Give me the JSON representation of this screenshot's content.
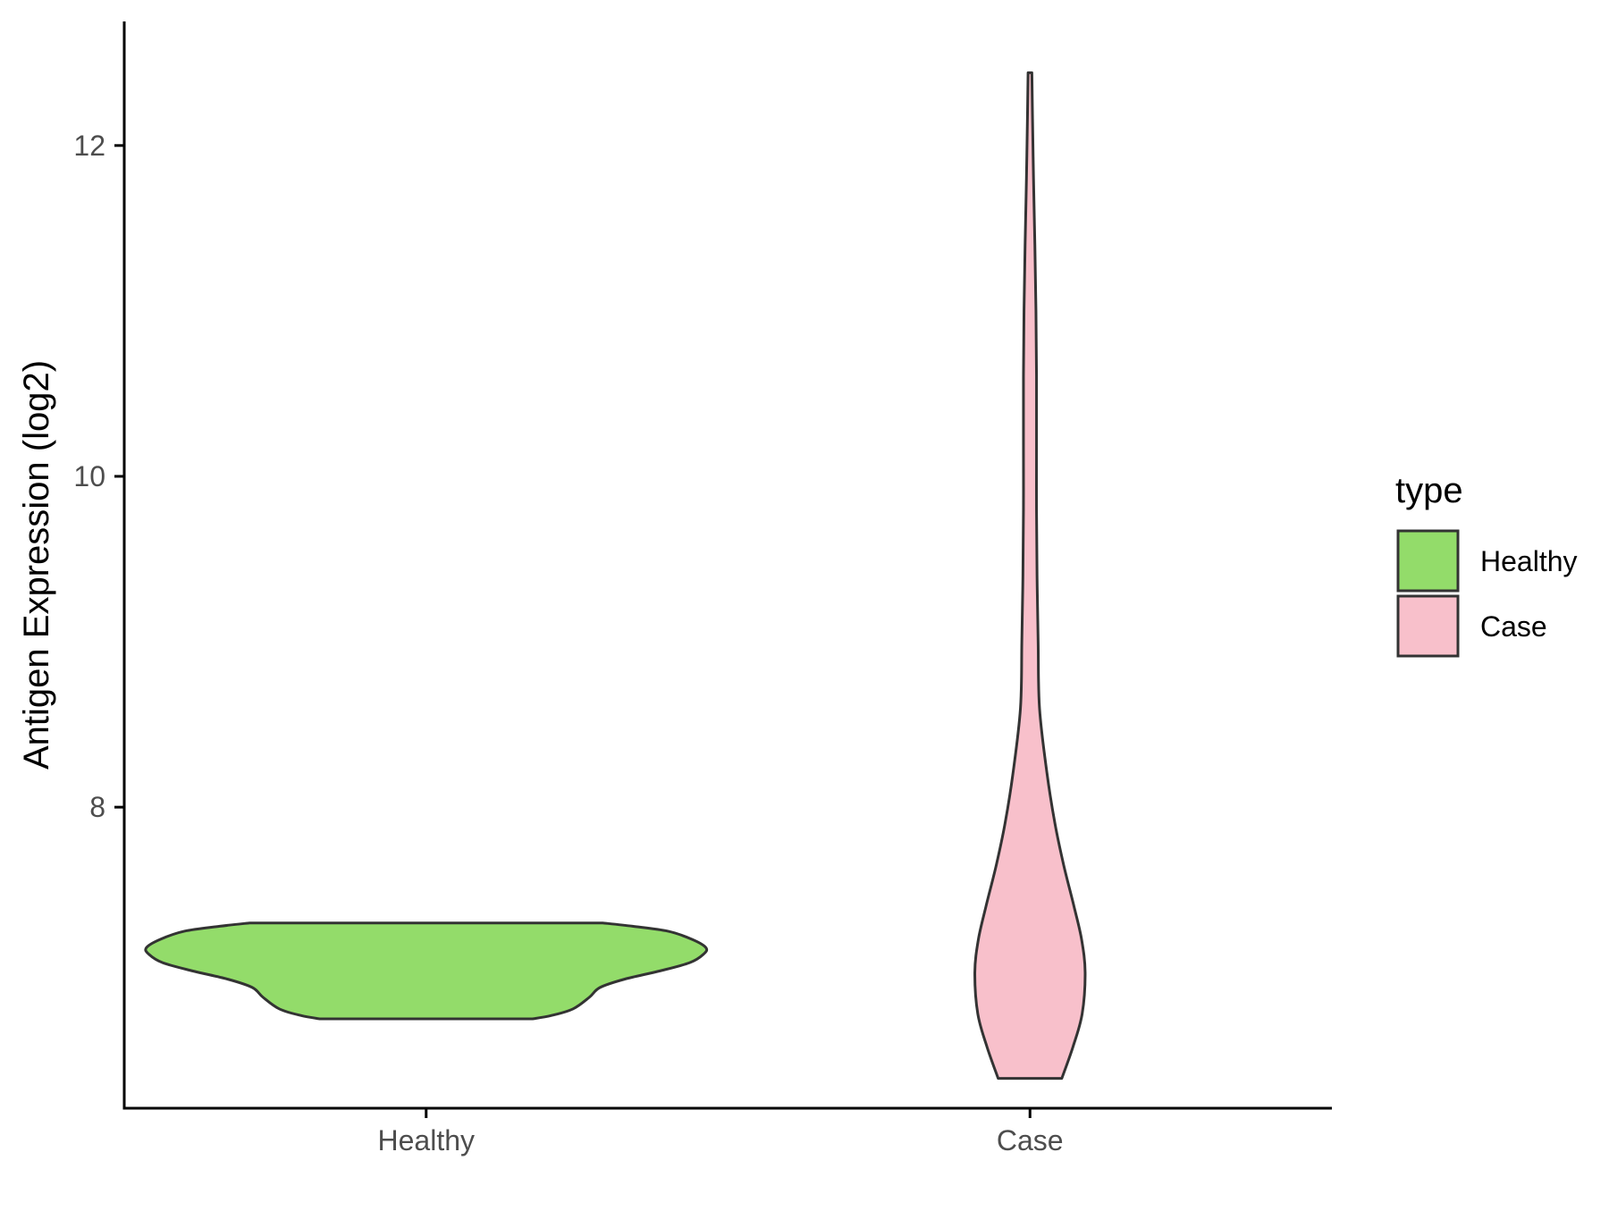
{
  "chart_data": {
    "type": "violin",
    "title": "",
    "xlabel": "",
    "ylabel": "Antigen Expression (log2)",
    "categories": [
      "Healthy",
      "Case"
    ],
    "y_ticks": [
      8,
      10,
      12
    ],
    "y_tick_labels": [
      "8",
      "10",
      "12"
    ],
    "ylim": [
      6.18,
      12.75
    ],
    "grid": false,
    "legend": {
      "title": "type",
      "position": "right",
      "entries": [
        {
          "label": "Healthy",
          "color": "#93dc6a"
        },
        {
          "label": "Case",
          "color": "#f8c0cb"
        }
      ]
    },
    "series": [
      {
        "name": "Healthy",
        "color": "#93dc6a",
        "min": 6.72,
        "max": 7.3,
        "profile": [
          [
            6.72,
            0.39
          ],
          [
            6.74,
            0.46
          ],
          [
            6.78,
            0.54
          ],
          [
            6.85,
            0.6
          ],
          [
            6.91,
            0.64
          ],
          [
            6.96,
            0.73
          ],
          [
            7.01,
            0.86
          ],
          [
            7.06,
            0.97
          ],
          [
            7.11,
            1.02
          ],
          [
            7.15,
            1.03
          ],
          [
            7.2,
            0.98
          ],
          [
            7.25,
            0.89
          ],
          [
            7.28,
            0.76
          ],
          [
            7.3,
            0.65
          ]
        ]
      },
      {
        "name": "Case",
        "color": "#f8c0cb",
        "min": 6.36,
        "max": 12.44,
        "profile": [
          [
            6.36,
            0.117
          ],
          [
            6.55,
            0.158
          ],
          [
            6.75,
            0.192
          ],
          [
            7.0,
            0.203
          ],
          [
            7.2,
            0.19
          ],
          [
            7.4,
            0.162
          ],
          [
            7.65,
            0.124
          ],
          [
            7.9,
            0.092
          ],
          [
            8.2,
            0.063
          ],
          [
            8.6,
            0.035
          ],
          [
            9.0,
            0.03
          ],
          [
            9.4,
            0.026
          ],
          [
            9.8,
            0.024
          ],
          [
            10.2,
            0.024
          ],
          [
            10.6,
            0.024
          ],
          [
            11.0,
            0.022
          ],
          [
            11.4,
            0.018
          ],
          [
            11.8,
            0.013
          ],
          [
            12.2,
            0.009
          ],
          [
            12.44,
            0.007
          ]
        ]
      }
    ]
  }
}
